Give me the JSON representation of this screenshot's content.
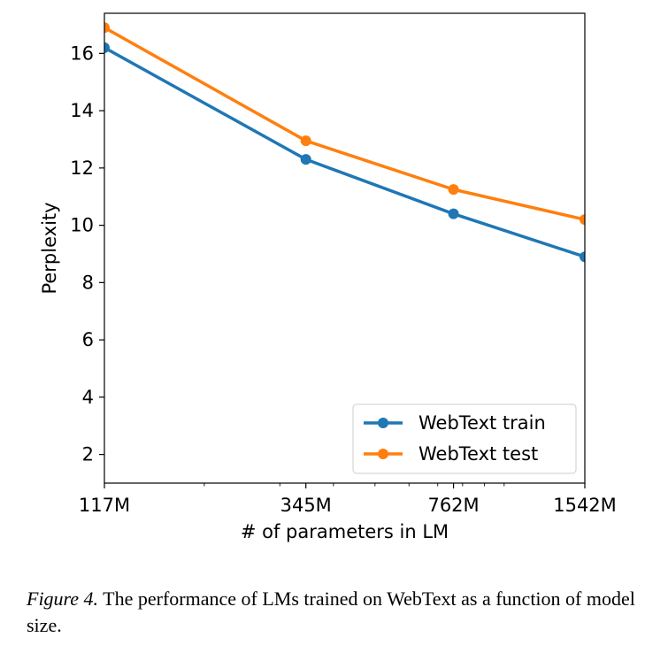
{
  "chart_data": {
    "type": "line",
    "title": "",
    "xlabel": "# of parameters in LM",
    "ylabel": "Perplexity",
    "x_scale": "log",
    "categories": [
      "117M",
      "345M",
      "762M",
      "1542M"
    ],
    "x": [
      117,
      345,
      762,
      1542
    ],
    "xlim": [
      117,
      1542
    ],
    "ylim": [
      1,
      17.4
    ],
    "yticks": [
      2,
      4,
      6,
      8,
      10,
      12,
      14,
      16
    ],
    "grid": false,
    "legend_position": "lower-right",
    "series": [
      {
        "name": "WebText train",
        "color": "#1f77b4",
        "values": [
          16.2,
          12.3,
          10.4,
          8.9
        ]
      },
      {
        "name": "WebText test",
        "color": "#ff7f0e",
        "values": [
          16.9,
          12.95,
          11.25,
          10.2
        ]
      }
    ]
  },
  "caption": {
    "figure_label": "Figure 4.",
    "text": " The performance of LMs trained on WebText as a function of model size."
  }
}
